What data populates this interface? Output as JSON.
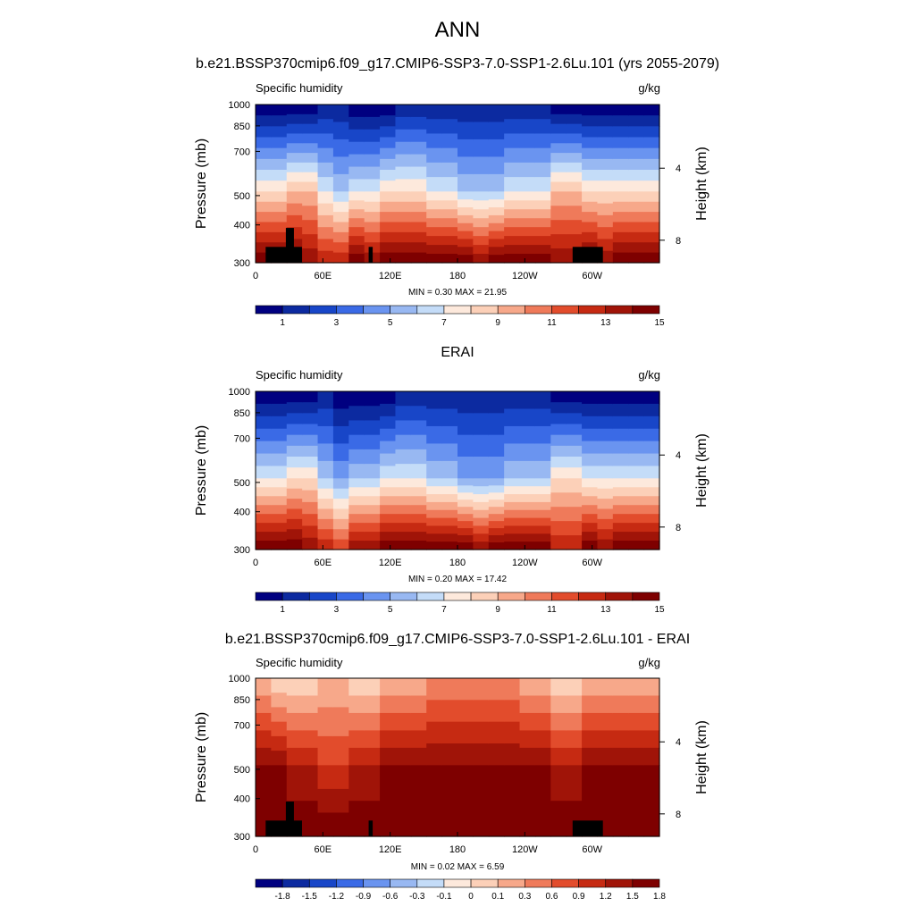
{
  "main_title": "ANN",
  "colors": {
    "abs_scale": [
      "#000080",
      "#0c2aa0",
      "#1846c8",
      "#3a6ae6",
      "#6a94f0",
      "#98b8f2",
      "#c4dcf8",
      "#fde9dc",
      "#fcd0b8",
      "#f7a88a",
      "#ef7a5a",
      "#e24c2c",
      "#c62a12",
      "#a01408",
      "#7e0000"
    ],
    "diff_scale": [
      "#000080",
      "#0c2aa0",
      "#1846c8",
      "#3a6ae6",
      "#6a94f0",
      "#98b8f2",
      "#c4dcf8",
      "#fde9dc",
      "#fcd0b8",
      "#f7a88a",
      "#ef7a5a",
      "#e24c2c",
      "#c62a12",
      "#a01408",
      "#7e0000"
    ],
    "topography": "#000000"
  },
  "chart_data": [
    {
      "type": "heatmap",
      "title": "b.e21.BSSP370cmip6.f09_g17.CMIP6-SSP3-7.0-SSP1-2.6Lu.101 (yrs 2055-2079)",
      "variable": "Specific humidity",
      "units": "g/kg",
      "ylabel": "Pressure (mb)",
      "y2label": "Height (km)",
      "xticks": [
        "0",
        "60E",
        "120E",
        "180",
        "120W",
        "60W"
      ],
      "yticks": [
        "300",
        "400",
        "500",
        "700",
        "850",
        "1000"
      ],
      "y2ticks": [
        "8",
        "4"
      ],
      "ylim": [
        1000,
        300
      ],
      "min_label": "MIN =",
      "min_value": "0.30",
      "max_label": "MAX =",
      "max_value": "21.95",
      "colorbar_labels": [
        "1",
        "3",
        "5",
        "7",
        "9",
        "11",
        "13",
        "15"
      ],
      "profile_surface": [
        14,
        14,
        14,
        13,
        12,
        12,
        14,
        13,
        14,
        14,
        14,
        14,
        14,
        14,
        13,
        14,
        14,
        14,
        14,
        13,
        13,
        14,
        13,
        14,
        14,
        14
      ],
      "profile_mid": [
        8,
        8,
        9,
        9,
        7,
        6,
        7,
        7,
        8,
        8,
        8,
        7,
        7,
        6,
        6,
        6,
        7,
        7,
        7,
        9,
        9,
        8,
        8,
        8,
        8,
        8
      ],
      "profile_top": [
        0,
        0,
        0,
        0,
        1,
        1,
        0,
        0,
        0,
        1,
        1,
        1,
        1,
        1,
        1,
        1,
        1,
        1,
        1,
        0,
        0,
        0,
        0,
        0,
        0,
        0
      ]
    },
    {
      "type": "heatmap",
      "title": "ERAI",
      "variable": "Specific humidity",
      "units": "g/kg",
      "ylabel": "Pressure (mb)",
      "y2label": "Height (km)",
      "xticks": [
        "0",
        "60E",
        "120E",
        "180",
        "120W",
        "60W"
      ],
      "yticks": [
        "300",
        "400",
        "500",
        "700",
        "850",
        "1000"
      ],
      "y2ticks": [
        "8",
        "4"
      ],
      "ylim": [
        1000,
        300
      ],
      "min_label": "MIN =",
      "min_value": "0.20",
      "max_label": "MAX =",
      "max_value": "17.42",
      "colorbar_labels": [
        "1",
        "3",
        "5",
        "7",
        "9",
        "11",
        "13",
        "15"
      ],
      "profile_surface": [
        14,
        14,
        14,
        13,
        12,
        11,
        13,
        13,
        14,
        14,
        14,
        14,
        14,
        14,
        13,
        14,
        14,
        14,
        14,
        12,
        12,
        14,
        13,
        14,
        14,
        14
      ],
      "profile_mid": [
        7,
        7,
        8,
        8,
        6,
        5,
        6,
        6,
        7,
        7,
        7,
        6,
        6,
        5,
        5,
        5,
        6,
        6,
        6,
        8,
        8,
        7,
        7,
        7,
        7,
        7
      ],
      "profile_top": [
        0,
        0,
        0,
        0,
        1,
        0,
        0,
        0,
        0,
        1,
        1,
        1,
        1,
        1,
        1,
        1,
        1,
        1,
        1,
        0,
        0,
        0,
        0,
        0,
        0,
        0
      ]
    },
    {
      "type": "heatmap",
      "title": "b.e21.BSSP370cmip6.f09_g17.CMIP6-SSP3-7.0-SSP1-2.6Lu.101 - ERAI",
      "variable": "Specific humidity",
      "units": "g/kg",
      "ylabel": "Pressure (mb)",
      "y2label": "Height (km)",
      "xticks": [
        "0",
        "60E",
        "120E",
        "180",
        "120W",
        "60W"
      ],
      "yticks": [
        "300",
        "400",
        "500",
        "700",
        "850",
        "1000"
      ],
      "y2ticks": [
        "8",
        "4"
      ],
      "ylim": [
        1000,
        300
      ],
      "min_label": "MIN =",
      "min_value": "0.02",
      "max_label": "MAX =",
      "max_value": "6.59",
      "colorbar_labels": [
        "-1.8",
        "-1.5",
        "-1.2",
        "-0.9",
        "-0.6",
        "-0.3",
        "-0.1",
        "0",
        "0.1",
        "0.3",
        "0.6",
        "0.9",
        "1.2",
        "1.5",
        "1.8"
      ],
      "profile_surface": [
        14,
        14,
        14,
        14,
        14,
        14,
        14,
        14,
        14,
        14,
        14,
        14,
        14,
        14,
        14,
        14,
        14,
        14,
        14,
        14,
        14,
        14,
        14,
        14,
        14,
        14
      ],
      "profile_mid": [
        14,
        14,
        13,
        13,
        12,
        12,
        13,
        13,
        14,
        14,
        14,
        14,
        14,
        14,
        14,
        14,
        14,
        14,
        14,
        13,
        13,
        14,
        14,
        14,
        14,
        14
      ],
      "profile_top": [
        9,
        8,
        8,
        8,
        9,
        9,
        8,
        8,
        9,
        9,
        9,
        10,
        10,
        10,
        10,
        10,
        10,
        9,
        9,
        8,
        8,
        9,
        9,
        9,
        9,
        9
      ]
    }
  ]
}
